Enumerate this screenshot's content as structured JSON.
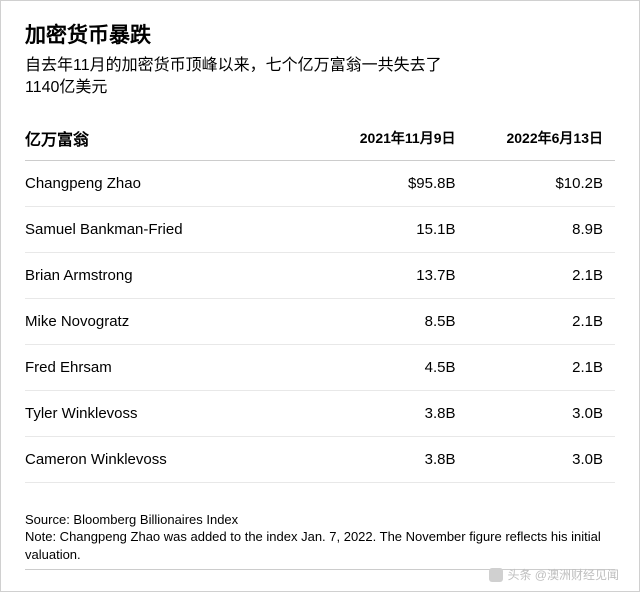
{
  "header": {
    "title": "加密货币暴跌",
    "subtitle_line1": "自去年11月的加密货币顶峰以来，七个亿万富翁一共失去了",
    "subtitle_line2": "1140亿美元"
  },
  "table": {
    "type": "table",
    "columns": [
      {
        "key": "name",
        "label": "亿万富翁",
        "align": "left",
        "fontsize": 16,
        "fontweight": "bold"
      },
      {
        "key": "nov2021",
        "label": "2021年11月9日",
        "align": "right",
        "fontsize": 14
      },
      {
        "key": "jun2022",
        "label": "2022年6月13日",
        "align": "right",
        "fontsize": 14
      }
    ],
    "rows": [
      {
        "name": "Changpeng Zhao",
        "nov2021": "$95.8B",
        "jun2022": "$10.2B"
      },
      {
        "name": "Samuel Bankman-Fried",
        "nov2021": "15.1B",
        "jun2022": "8.9B"
      },
      {
        "name": "Brian Armstrong",
        "nov2021": "13.7B",
        "jun2022": "2.1B"
      },
      {
        "name": "Mike Novogratz",
        "nov2021": "8.5B",
        "jun2022": "2.1B"
      },
      {
        "name": "Fred Ehrsam",
        "nov2021": "4.5B",
        "jun2022": "2.1B"
      },
      {
        "name": "Tyler Winklevoss",
        "nov2021": "3.8B",
        "jun2022": "3.0B"
      },
      {
        "name": "Cameron Winklevoss",
        "nov2021": "3.8B",
        "jun2022": "3.0B"
      }
    ],
    "border_color": "#cccccc",
    "row_border_color": "#e8e8e8",
    "text_color": "#000000",
    "background_color": "#ffffff"
  },
  "footnote": {
    "source": "Source: Bloomberg Billionaires Index",
    "note": "Note: Changpeng Zhao was added to the index Jan. 7, 2022. The November figure reflects his initial valuation."
  },
  "watermark": {
    "text": "头条 @澳洲财经见闻"
  }
}
